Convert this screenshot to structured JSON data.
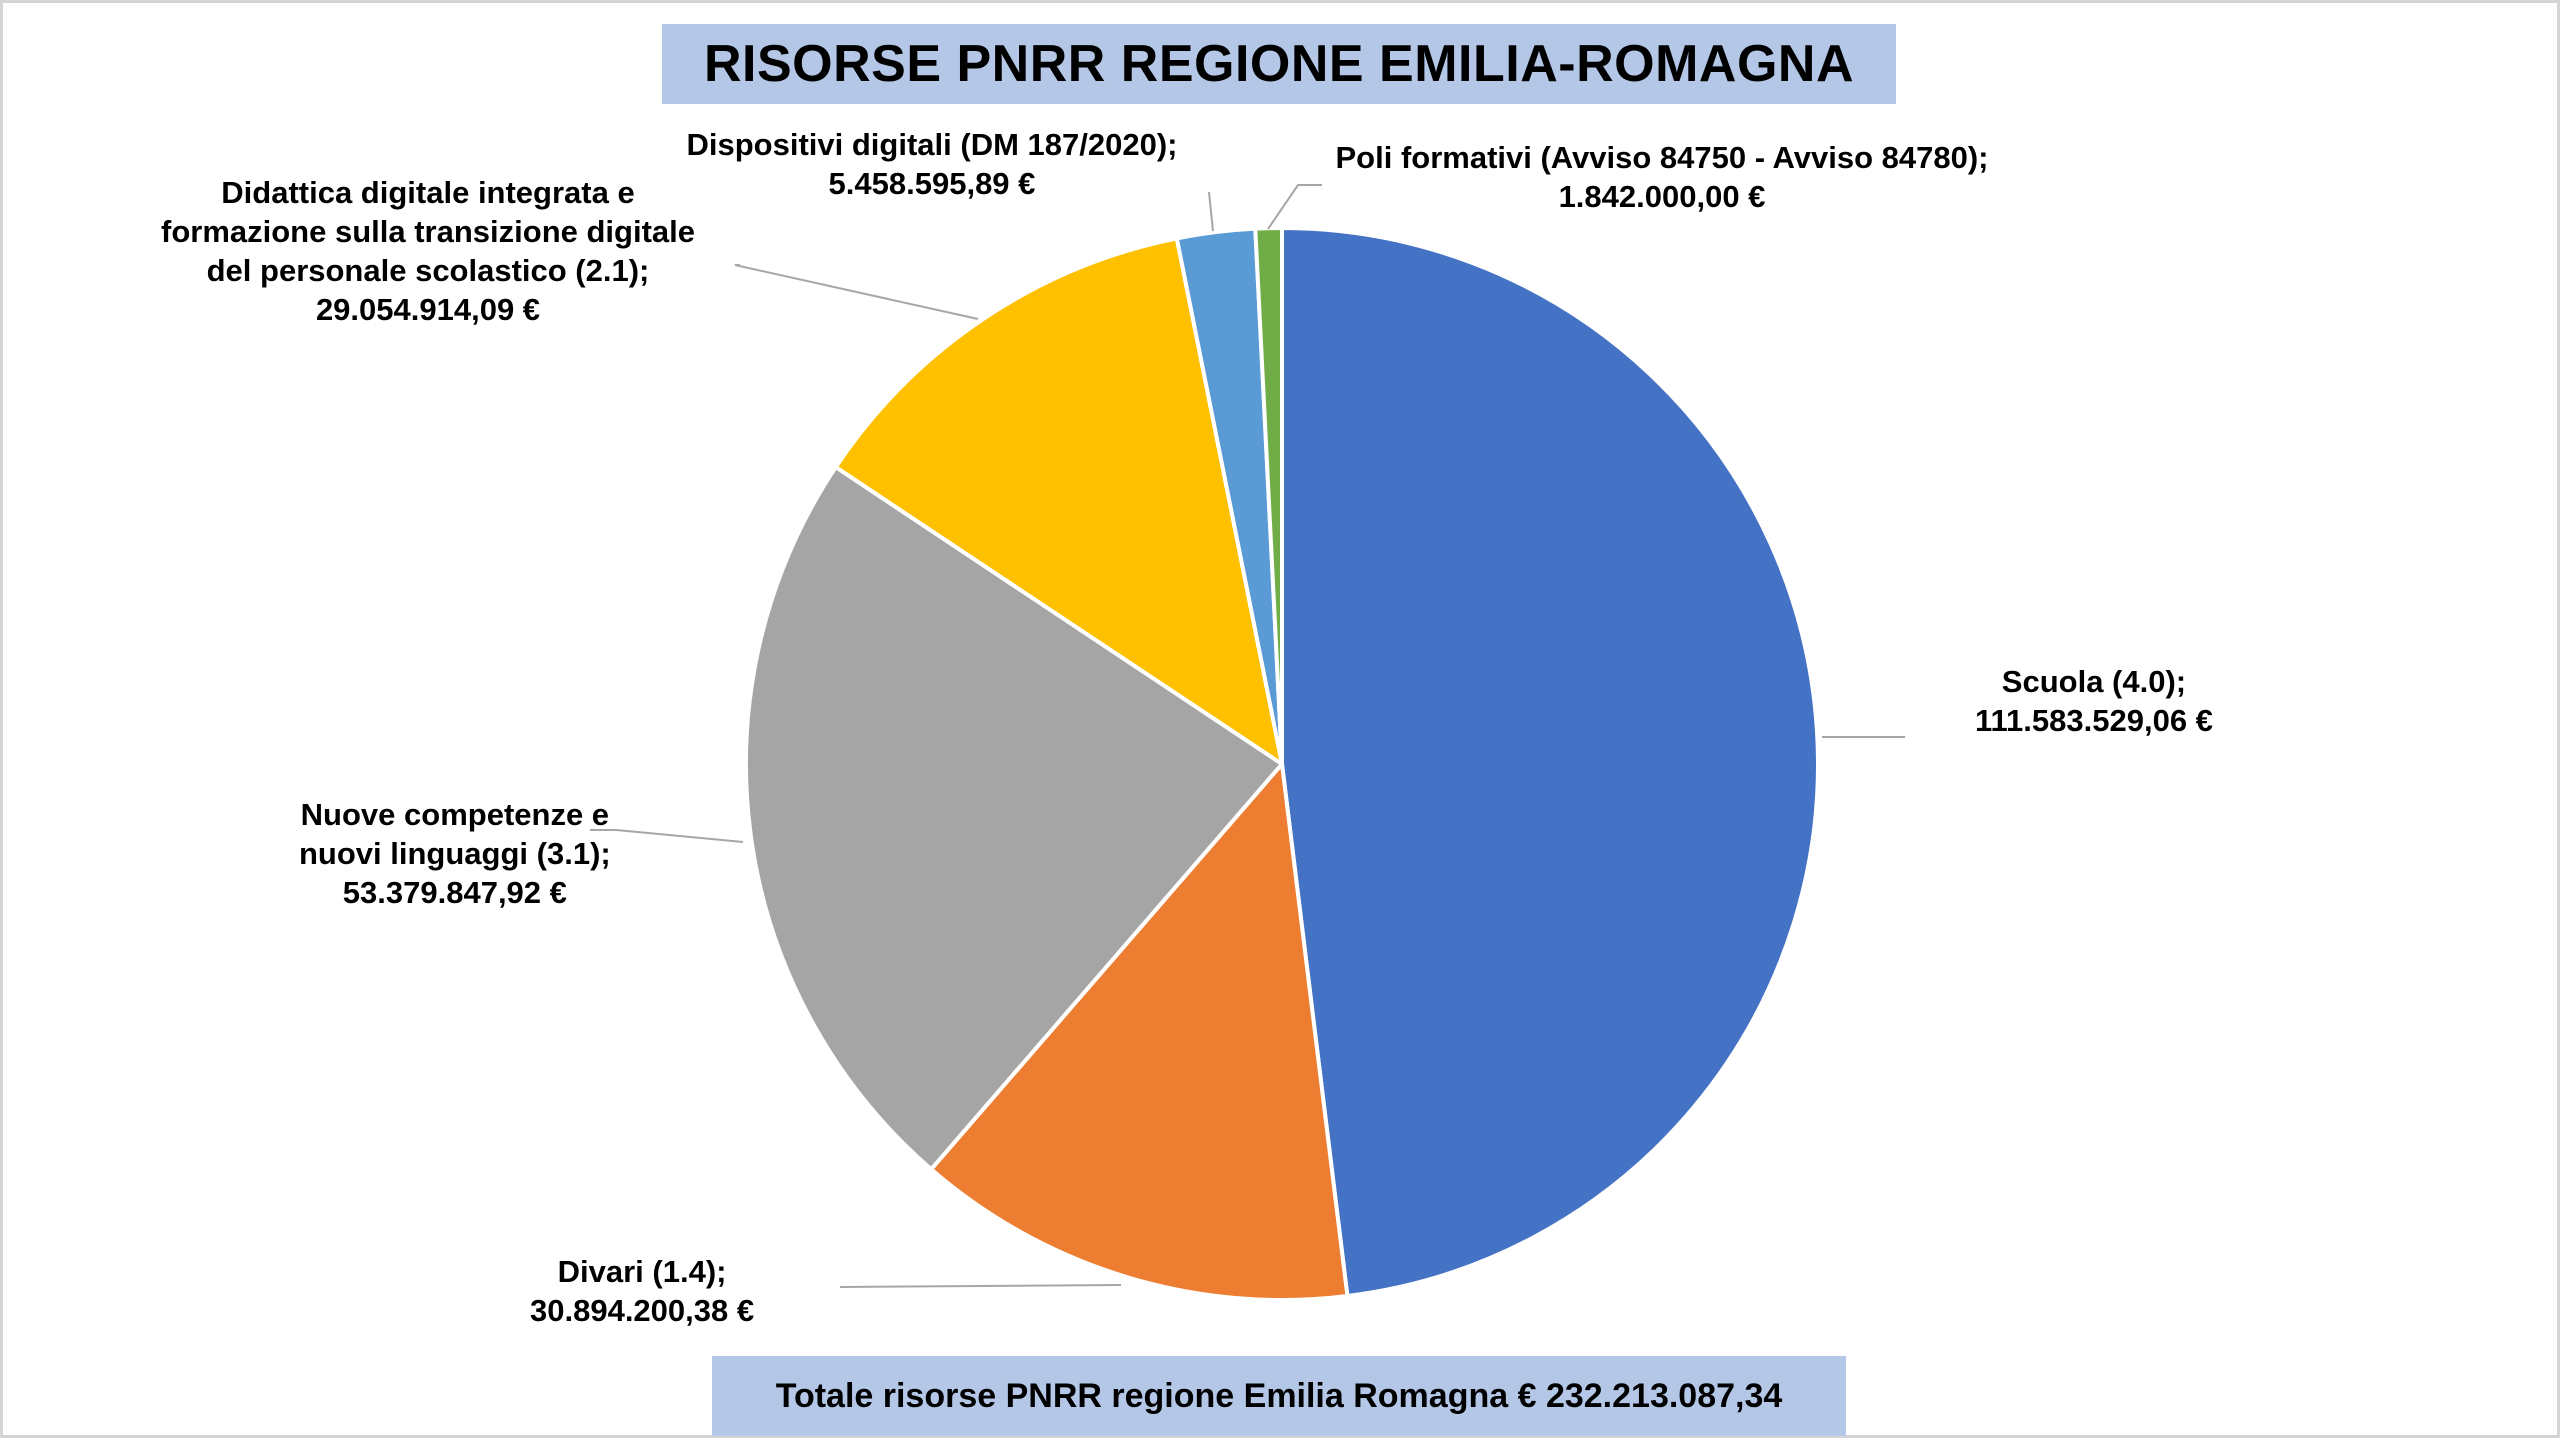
{
  "title": "RISORSE PNRR REGIONE EMILIA-ROMAGNA",
  "total_label": "Totale risorse PNRR regione Emilia Romagna € 232.213.087,34",
  "chart_data": {
    "type": "pie",
    "title": "RISORSE PNRR REGIONE EMILIA-ROMAGNA",
    "total": 232213087.34,
    "start": "12 o'clock, clockwise",
    "slices": [
      {
        "category": "Scuola (4.0)",
        "value": 111583529.06,
        "color": "#4472c4",
        "label_lines": [
          "Scuola (4.0);",
          "111.583.529,06 €"
        ]
      },
      {
        "category": "Divari (1.4)",
        "value": 30894200.38,
        "color": "#ed7d31",
        "label_lines": [
          "Divari (1.4);",
          "30.894.200,38 €"
        ]
      },
      {
        "category": "Nuove competenze e nuovi linguaggi (3.1)",
        "value": 53379847.92,
        "color": "#a5a5a5",
        "label_lines": [
          "Nuove competenze e",
          "nuovi linguaggi (3.1);",
          "53.379.847,92 €"
        ]
      },
      {
        "category": "Didattica digitale integrata e formazione sulla transizione digitale del personale scolastico (2.1)",
        "value": 29054914.09,
        "color": "#ffc000",
        "label_lines": [
          "Didattica digitale integrata e",
          "formazione sulla transizione digitale",
          "del personale scolastico (2.1);",
          "29.054.914,09 €"
        ]
      },
      {
        "category": "Dispositivi digitali (DM 187/2020)",
        "value": 5458595.89,
        "color": "#5b9bd5",
        "label_lines": [
          "Dispositivi digitali (DM 187/2020);",
          "5.458.595,89 €"
        ]
      },
      {
        "category": "Poli formativi (Avviso 84750 - Avviso 84780)",
        "value": 1842000.0,
        "color": "#70ad47",
        "label_lines": [
          "Poli formativi (Avviso 84750 - Avviso 84780);",
          "1.842.000,00 €"
        ]
      }
    ]
  }
}
